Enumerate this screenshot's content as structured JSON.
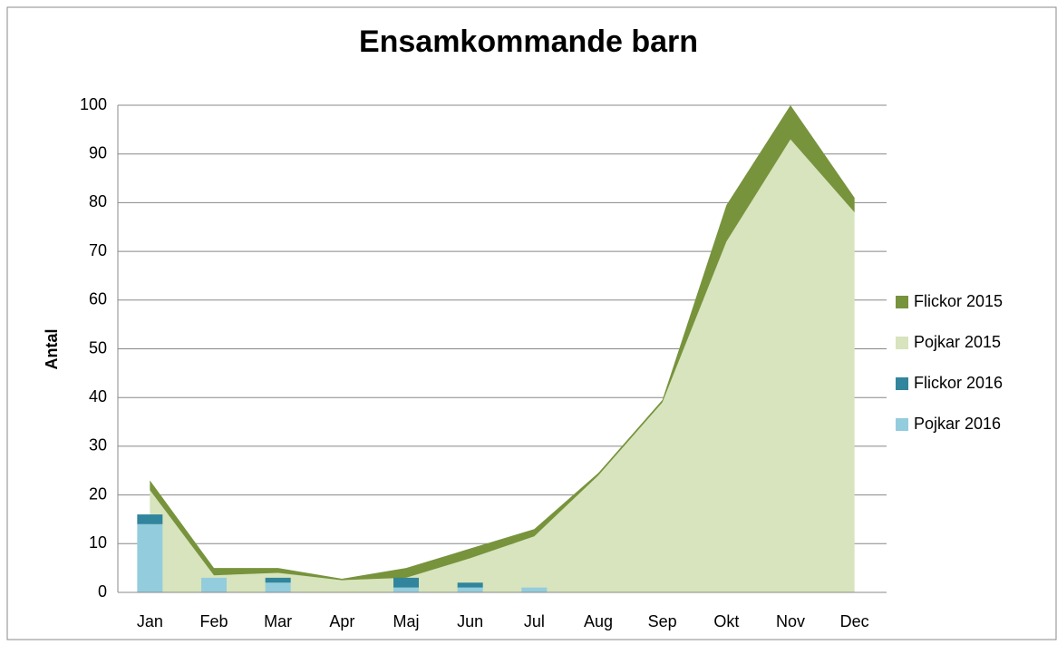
{
  "chart_data": {
    "type": "combo",
    "title": "Ensamkommande barn",
    "y_label": "Antal",
    "categories": [
      "Jan",
      "Feb",
      "Mar",
      "Apr",
      "Maj",
      "Jun",
      "Jul",
      "Aug",
      "Sep",
      "Okt",
      "Nov",
      "Dec"
    ],
    "series": [
      {
        "name": "Flickor 2015",
        "kind": "area",
        "color": "#77933c",
        "values": [
          2,
          1.5,
          1,
          0.3,
          2,
          2,
          1.5,
          0.5,
          0.5,
          7.5,
          7,
          3
        ]
      },
      {
        "name": "Pojkar 2015",
        "kind": "area",
        "color": "#d7e4bd",
        "values": [
          21,
          3.5,
          4,
          2.5,
          3,
          7,
          11.5,
          24,
          39,
          72,
          93,
          78
        ]
      },
      {
        "name": "Flickor 2016",
        "kind": "bar",
        "color": "#31859c",
        "values": [
          2,
          0,
          1,
          0,
          2,
          1,
          0,
          null,
          null,
          null,
          null,
          null
        ]
      },
      {
        "name": "Pojkar 2016",
        "kind": "bar",
        "color": "#93cddd",
        "values": [
          14,
          3,
          2,
          0,
          1,
          1,
          1,
          null,
          null,
          null,
          null,
          null
        ]
      }
    ],
    "ylim": [
      0,
      100
    ],
    "yticks": [
      0,
      10,
      20,
      30,
      40,
      50,
      60,
      70,
      80,
      90,
      100
    ],
    "grid": true,
    "legend": "right"
  }
}
